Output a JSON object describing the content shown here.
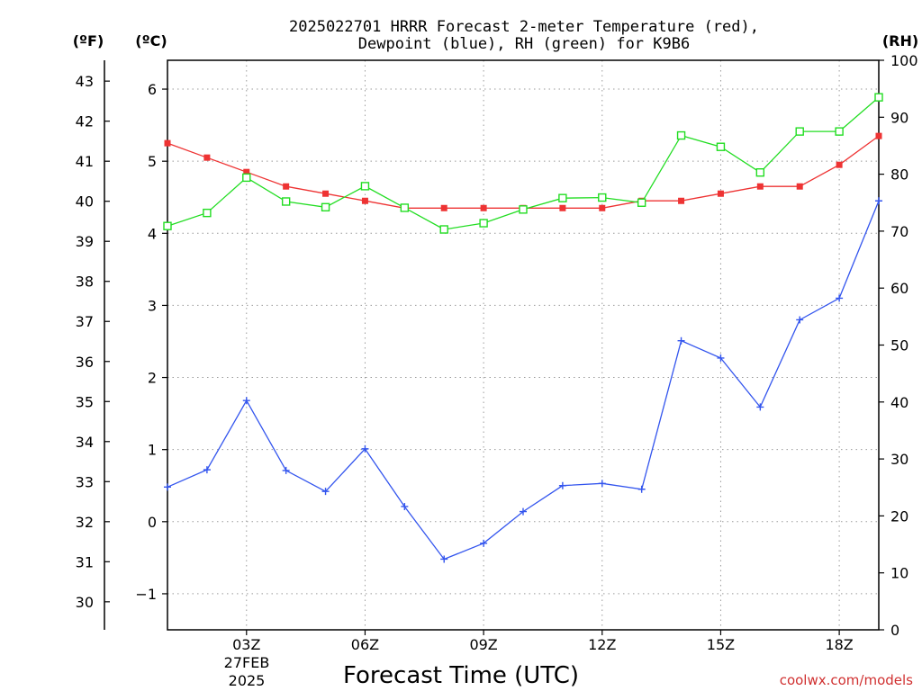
{
  "chart_data": {
    "type": "line",
    "title_line1": "2025022701 HRRR Forecast 2-meter Temperature (red),",
    "title_line2": "Dewpoint (blue), RH (green) for K9B6",
    "xlabel": "Forecast Time (UTC)",
    "credit": "coolwx.com/models",
    "units": {
      "fahrenheit": "(ºF)",
      "celsius": "(ºC)",
      "rh": "(RH)"
    },
    "x_hours": [
      1,
      2,
      3,
      4,
      5,
      6,
      7,
      8,
      9,
      10,
      11,
      12,
      13,
      14,
      15,
      16,
      17,
      18,
      19
    ],
    "x_ticks": [
      {
        "hour": 3,
        "label": "03Z"
      },
      {
        "hour": 6,
        "label": "06Z"
      },
      {
        "hour": 9,
        "label": "09Z"
      },
      {
        "hour": 12,
        "label": "12Z"
      },
      {
        "hour": 15,
        "label": "15Z"
      },
      {
        "hour": 18,
        "label": "18Z"
      }
    ],
    "date_label": [
      "27FEB",
      "2025"
    ],
    "xlim": [
      1,
      19
    ],
    "celsius_axis": {
      "ylim": [
        -1.5,
        6.4
      ],
      "ticks": [
        "−1",
        "0",
        "1",
        "2",
        "3",
        "4",
        "5",
        "6"
      ],
      "tick_values": [
        -1,
        0,
        1,
        2,
        3,
        4,
        5,
        6
      ]
    },
    "fahrenheit_axis": {
      "ticks": [
        "30",
        "31",
        "32",
        "33",
        "34",
        "35",
        "36",
        "37",
        "38",
        "39",
        "40",
        "41",
        "42",
        "43"
      ],
      "tick_values": [
        30,
        31,
        32,
        33,
        34,
        35,
        36,
        37,
        38,
        39,
        40,
        41,
        42,
        43
      ]
    },
    "rh_axis": {
      "ylim": [
        0,
        100
      ],
      "ticks": [
        "0",
        "10",
        "20",
        "30",
        "40",
        "50",
        "60",
        "70",
        "80",
        "90",
        "100"
      ],
      "tick_values": [
        0,
        10,
        20,
        30,
        40,
        50,
        60,
        70,
        80,
        90,
        100
      ]
    },
    "grid": true,
    "series": [
      {
        "key": "temperature",
        "color": "#ee3333",
        "marker": "filled-square",
        "axis": "celsius",
        "values": [
          5.25,
          5.05,
          4.85,
          4.65,
          4.55,
          4.45,
          4.35,
          4.35,
          4.35,
          4.35,
          4.35,
          4.35,
          4.45,
          4.45,
          4.55,
          4.65,
          4.65,
          4.95,
          5.35
        ]
      },
      {
        "key": "dewpoint",
        "color": "#3355ee",
        "marker": "plus",
        "axis": "celsius",
        "values": [
          0.48,
          0.72,
          1.68,
          0.71,
          0.42,
          1.01,
          0.21,
          -0.52,
          -0.3,
          0.14,
          0.5,
          0.53,
          0.45,
          2.51,
          2.27,
          1.59,
          2.8,
          3.1,
          4.45
        ]
      },
      {
        "key": "rh",
        "color": "#22dd22",
        "marker": "open-square",
        "axis": "rh",
        "values": [
          70.9,
          73.2,
          79.4,
          75.2,
          74.2,
          77.9,
          74.1,
          70.3,
          71.4,
          73.8,
          75.8,
          75.9,
          75.0,
          86.8,
          84.8,
          80.3,
          87.5,
          87.5,
          93.5
        ]
      }
    ]
  }
}
